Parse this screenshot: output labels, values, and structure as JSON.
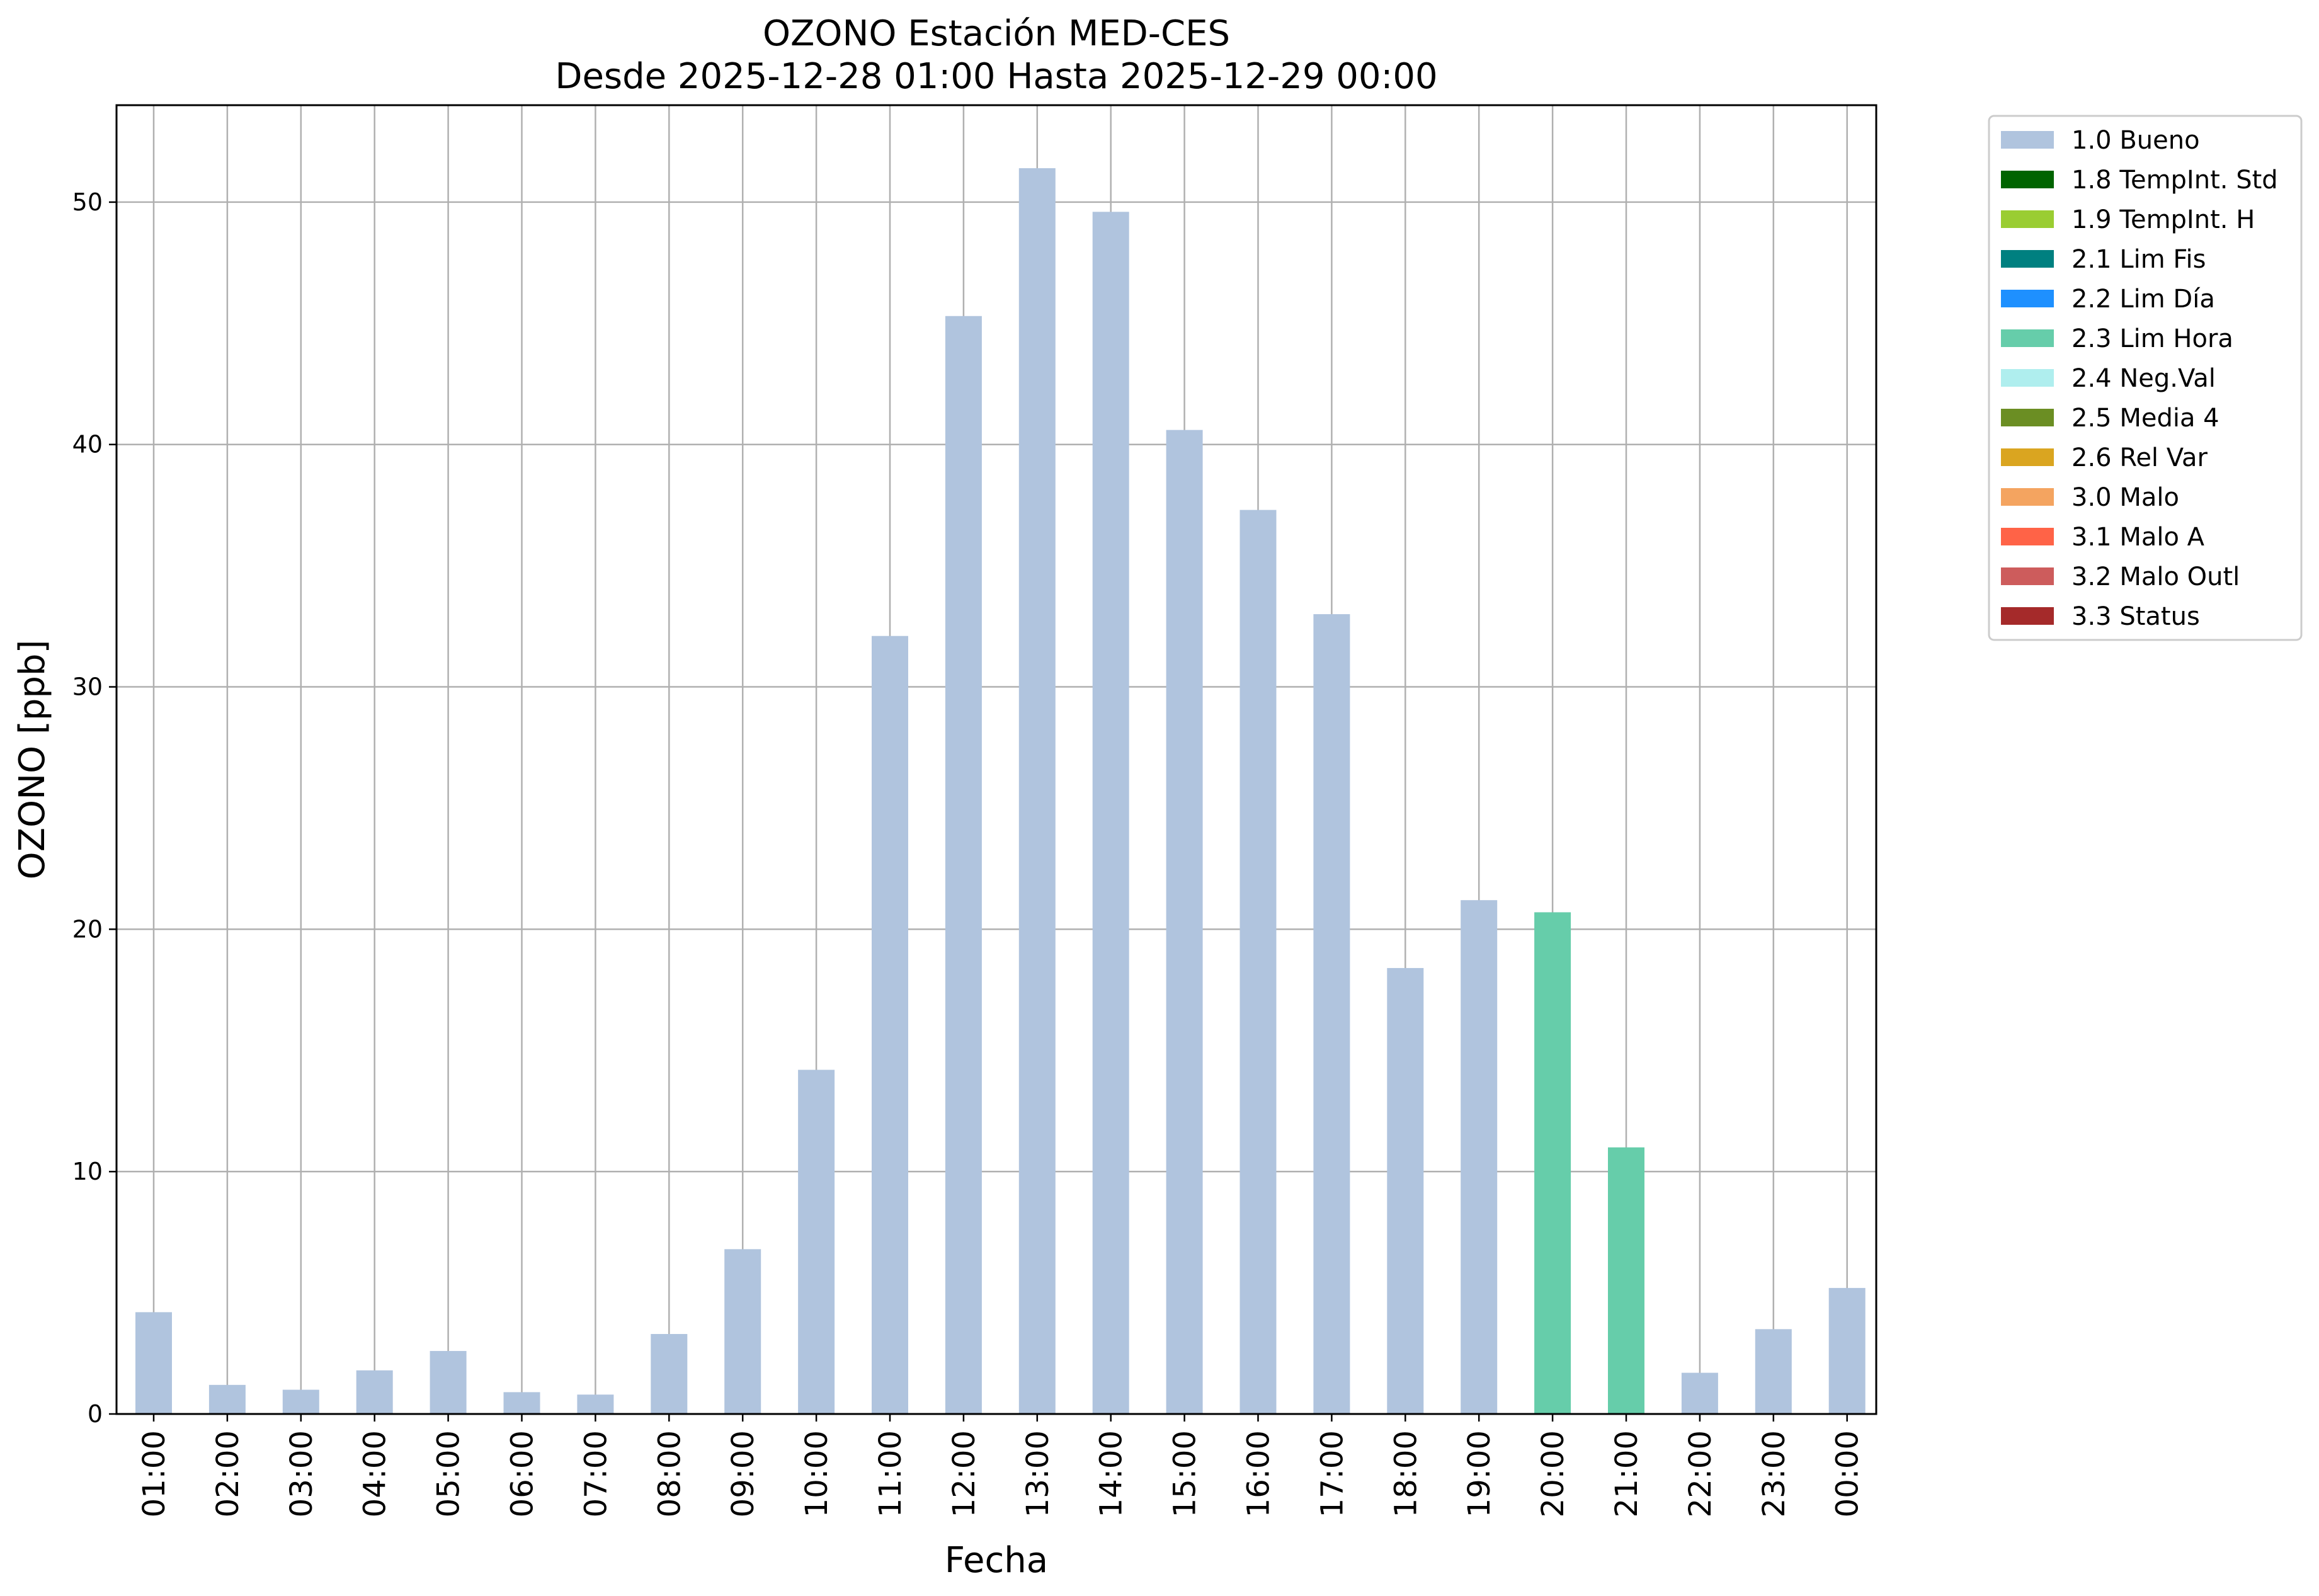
{
  "chart_data": {
    "type": "bar",
    "title": "OZONO Estación MED-CES",
    "subtitle": "Desde 2025-12-28 01:00 Hasta 2025-12-29 00:00",
    "xlabel": "Fecha",
    "ylabel": "OZONO [ppb]",
    "ylim": [
      0,
      54
    ],
    "yticks": [
      0,
      10,
      20,
      30,
      40,
      50
    ],
    "grid": true,
    "legend_position": "outside-right-top",
    "categories": [
      "01:00",
      "02:00",
      "03:00",
      "04:00",
      "05:00",
      "06:00",
      "07:00",
      "08:00",
      "09:00",
      "10:00",
      "11:00",
      "12:00",
      "13:00",
      "14:00",
      "15:00",
      "16:00",
      "17:00",
      "18:00",
      "19:00",
      "20:00",
      "21:00",
      "22:00",
      "23:00",
      "00:00"
    ],
    "values": [
      4.2,
      1.2,
      1.0,
      1.8,
      2.6,
      0.9,
      0.8,
      3.3,
      6.8,
      14.2,
      32.1,
      45.3,
      51.4,
      49.6,
      40.6,
      37.3,
      33.0,
      18.4,
      21.2,
      20.7,
      11.0,
      1.7,
      3.5,
      5.2
    ],
    "flags": [
      "1.0 Bueno",
      "1.0 Bueno",
      "1.0 Bueno",
      "1.0 Bueno",
      "1.0 Bueno",
      "1.0 Bueno",
      "1.0 Bueno",
      "1.0 Bueno",
      "1.0 Bueno",
      "1.0 Bueno",
      "1.0 Bueno",
      "1.0 Bueno",
      "1.0 Bueno",
      "1.0 Bueno",
      "1.0 Bueno",
      "1.0 Bueno",
      "1.0 Bueno",
      "1.0 Bueno",
      "1.0 Bueno",
      "2.3 Lim Hora",
      "2.3 Lim Hora",
      "1.0 Bueno",
      "1.0 Bueno",
      "1.0 Bueno"
    ],
    "legend": [
      {
        "label": "1.0 Bueno",
        "color": "#b0c4de"
      },
      {
        "label": "1.8 TempInt. Std",
        "color": "#006400"
      },
      {
        "label": "1.9 TempInt. H",
        "color": "#9acd32"
      },
      {
        "label": "2.1 Lim Fis",
        "color": "#008080"
      },
      {
        "label": "2.2 Lim Día",
        "color": "#1e90ff"
      },
      {
        "label": "2.3 Lim Hora",
        "color": "#66cdaa"
      },
      {
        "label": "2.4 Neg.Val",
        "color": "#afeeee"
      },
      {
        "label": "2.5 Media 4",
        "color": "#6b8e23"
      },
      {
        "label": "2.6 Rel Var",
        "color": "#daa520"
      },
      {
        "label": "3.0 Malo",
        "color": "#f4a460"
      },
      {
        "label": "3.1 Malo A",
        "color": "#ff6347"
      },
      {
        "label": "3.2 Malo Outl",
        "color": "#cd5c5c"
      },
      {
        "label": "3.3 Status",
        "color": "#a52a2a"
      }
    ]
  }
}
